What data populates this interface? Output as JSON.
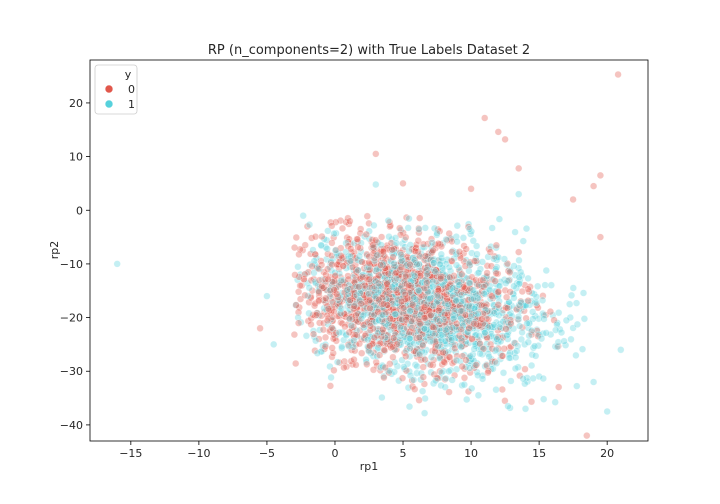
{
  "chart_data": {
    "type": "scatter",
    "title": "RP (n_components=2) with True Labels Dataset 2",
    "xlabel": "rp1",
    "ylabel": "rp2",
    "xlim": [
      -18,
      23
    ],
    "ylim": [
      -43,
      28
    ],
    "xticks": [
      -15,
      -10,
      -5,
      0,
      5,
      10,
      15,
      20
    ],
    "yticks": [
      -40,
      -30,
      -20,
      -10,
      0,
      10,
      20
    ],
    "grid": false,
    "legend": {
      "title": "y",
      "placement": "top-left",
      "entries": [
        {
          "label": "0",
          "color": "#e1574b"
        },
        {
          "label": "1",
          "color": "#56d1dc"
        }
      ]
    },
    "series": [
      {
        "name": "0",
        "color": "#e1574b",
        "cluster": {
          "center": [
            5,
            -17
          ],
          "spread": [
            4.2,
            6.0
          ],
          "count": 1400
        },
        "outliers": [
          [
            20.8,
            25.3
          ],
          [
            11,
            17.2
          ],
          [
            12,
            14.6
          ],
          [
            12.5,
            13.2
          ],
          [
            3,
            10.5
          ],
          [
            13.5,
            7.8
          ],
          [
            19.5,
            6.5
          ],
          [
            19,
            4.5
          ],
          [
            17.5,
            2
          ],
          [
            10,
            4
          ],
          [
            5,
            5
          ],
          [
            -5.5,
            -22
          ],
          [
            18.5,
            -42
          ],
          [
            19.5,
            -5
          ]
        ]
      },
      {
        "name": "1",
        "color": "#56d1dc",
        "cluster": {
          "center": [
            7,
            -18
          ],
          "spread": [
            4.5,
            6.5
          ],
          "count": 1400
        },
        "outliers": [
          [
            -16,
            -10
          ],
          [
            21,
            -26
          ],
          [
            20,
            -37.5
          ],
          [
            19,
            -32
          ],
          [
            3,
            4.8
          ],
          [
            13.5,
            3
          ],
          [
            -4.5,
            -25
          ],
          [
            -5,
            -16
          ],
          [
            14,
            -37
          ]
        ]
      }
    ]
  }
}
